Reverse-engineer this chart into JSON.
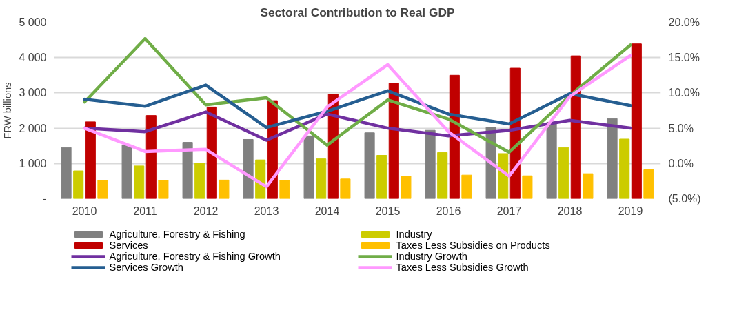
{
  "chart_data": {
    "type": "bar",
    "title": "Sectoral Contribution to Real GDP",
    "ylabel": "FRW billions",
    "categories": [
      "2010",
      "2011",
      "2012",
      "2013",
      "2014",
      "2015",
      "2016",
      "2017",
      "2018",
      "2019"
    ],
    "series": [
      {
        "name": "Agriculture, Forestry & Fishing",
        "color": "#808080",
        "values": [
          1450,
          1520,
          1600,
          1680,
          1780,
          1870,
          1940,
          2030,
          2170,
          2270
        ]
      },
      {
        "name": "Industry",
        "color": "#cccc00",
        "values": [
          790,
          930,
          1010,
          1100,
          1130,
          1230,
          1310,
          1280,
          1450,
          1690
        ]
      },
      {
        "name": "Services",
        "color": "#c00000",
        "values": [
          2180,
          2360,
          2600,
          2780,
          2960,
          3270,
          3500,
          3700,
          4050,
          4390
        ]
      },
      {
        "name": "Taxes Less Subsidies on Products",
        "color": "#ffc000",
        "values": [
          520,
          520,
          530,
          520,
          560,
          640,
          670,
          650,
          710,
          820
        ]
      },
      {
        "name": "Agriculture, Forestry & Fishing Growth",
        "color": "#7030a0",
        "type": "line",
        "axis": "y2",
        "values": [
          5.0,
          4.5,
          7.3,
          3.3,
          7.0,
          5.0,
          3.9,
          4.7,
          6.1,
          5.0
        ]
      },
      {
        "name": "Industry Growth",
        "color": "#70ad47",
        "type": "line",
        "axis": "y2",
        "values": [
          8.7,
          17.7,
          8.3,
          9.3,
          2.6,
          9.0,
          6.3,
          1.6,
          9.6,
          16.8
        ]
      },
      {
        "name": "Services Growth",
        "color": "#255e91",
        "type": "line",
        "axis": "y2",
        "values": [
          9.1,
          8.1,
          11.1,
          5.1,
          7.4,
          10.3,
          7.0,
          5.6,
          9.9,
          8.2
        ]
      },
      {
        "name": "Taxes Less Subsidies Growth",
        "color": "#ff99ff",
        "type": "line",
        "axis": "y2",
        "values": [
          5.0,
          1.7,
          2.0,
          -3.3,
          8.0,
          14.0,
          4.5,
          -1.8,
          9.5,
          15.3
        ]
      }
    ],
    "ylim": [
      0,
      5000
    ],
    "yticks": [
      {
        "value": 0,
        "label": "-"
      },
      {
        "value": 1000,
        "label": "1 000"
      },
      {
        "value": 2000,
        "label": "2 000"
      },
      {
        "value": 3000,
        "label": "3 000"
      },
      {
        "value": 4000,
        "label": "4 000"
      },
      {
        "value": 5000,
        "label": "5 000"
      }
    ],
    "y2lim": [
      -5,
      20
    ],
    "y2ticks": [
      {
        "value": -5,
        "label": "(5.0%)"
      },
      {
        "value": 0,
        "label": "0.0%"
      },
      {
        "value": 5,
        "label": "5.0%"
      },
      {
        "value": 10,
        "label": "10.0%"
      },
      {
        "value": 15,
        "label": "15.0%"
      },
      {
        "value": 20,
        "label": "20.0%"
      }
    ],
    "grid": "y",
    "legend": "bottom",
    "line_style": "solid",
    "marker": "none"
  }
}
